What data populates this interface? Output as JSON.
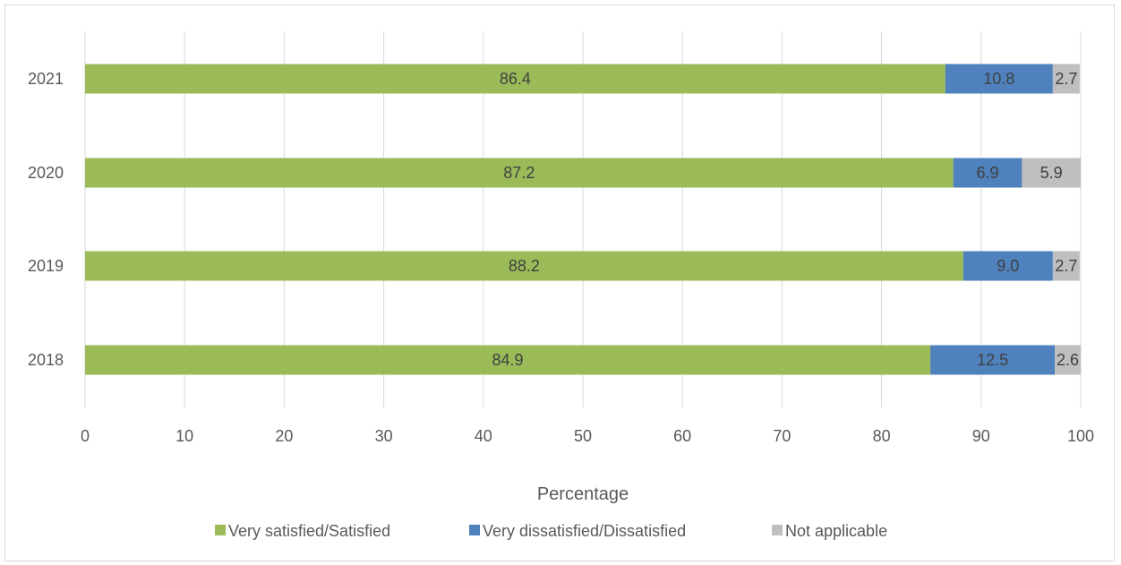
{
  "chart_data": {
    "type": "bar",
    "orientation": "horizontal",
    "stacked": true,
    "categories": [
      "2021",
      "2020",
      "2019",
      "2018"
    ],
    "series": [
      {
        "name": "Very satisfied/Satisfied",
        "color": "#9bbb59",
        "values": [
          86.4,
          87.2,
          88.2,
          84.9
        ]
      },
      {
        "name": "Very dissatisfied/Dissatisfied",
        "color": "#4f81bd",
        "values": [
          10.8,
          6.9,
          9.0,
          12.5
        ]
      },
      {
        "name": "Not applicable",
        "color": "#bfbfbf",
        "values": [
          2.7,
          5.9,
          2.7,
          2.6
        ]
      }
    ],
    "xlabel": "Percentage",
    "ylabel": "",
    "xlim": [
      0,
      100
    ],
    "xticks": [
      0,
      10,
      20,
      30,
      40,
      50,
      60,
      70,
      80,
      90,
      100
    ],
    "grid": "vertical",
    "legend_position": "bottom"
  }
}
